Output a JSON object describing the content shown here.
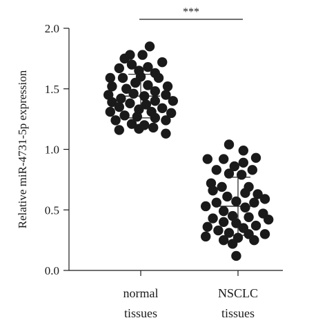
{
  "chart_data": {
    "type": "scatter",
    "ylabel": "Relative miR-4731-5p expression",
    "ylim": [
      0.0,
      2.0
    ],
    "yticks": [
      "0.0",
      "0.5",
      "1.0",
      "1.5",
      "2.0"
    ],
    "grid": false,
    "categories": [
      {
        "line1": "normal",
        "line2": "tissues"
      },
      {
        "line1": "NSCLC",
        "line2": "tissues"
      }
    ],
    "groups": [
      {
        "mean": 1.44,
        "sd_low": 1.26,
        "sd_high": 1.62,
        "points": [
          [
            0.25,
            1.85
          ],
          [
            -0.3,
            1.78
          ],
          [
            0.05,
            1.78
          ],
          [
            -0.45,
            1.75
          ],
          [
            0.6,
            1.72
          ],
          [
            -0.25,
            1.7
          ],
          [
            0.2,
            1.68
          ],
          [
            -0.6,
            1.67
          ],
          [
            -0.05,
            1.65
          ],
          [
            0.4,
            1.63
          ],
          [
            -0.85,
            1.59
          ],
          [
            -0.5,
            1.59
          ],
          [
            0.0,
            1.6
          ],
          [
            0.5,
            1.59
          ],
          [
            -0.15,
            1.55
          ],
          [
            -0.8,
            1.52
          ],
          [
            0.2,
            1.53
          ],
          [
            0.75,
            1.52
          ],
          [
            -0.4,
            1.5
          ],
          [
            0.4,
            1.48
          ],
          [
            -0.9,
            1.45
          ],
          [
            -0.2,
            1.46
          ],
          [
            0.1,
            1.44
          ],
          [
            0.7,
            1.45
          ],
          [
            -0.55,
            1.42
          ],
          [
            -0.8,
            1.39
          ],
          [
            0.4,
            1.4
          ],
          [
            0.9,
            1.4
          ],
          [
            -0.3,
            1.38
          ],
          [
            0.15,
            1.37
          ],
          [
            -0.6,
            1.35
          ],
          [
            -0.05,
            1.33
          ],
          [
            0.6,
            1.34
          ],
          [
            -0.85,
            1.31
          ],
          [
            0.3,
            1.31
          ],
          [
            0.85,
            1.3
          ],
          [
            -0.45,
            1.28
          ],
          [
            -0.1,
            1.27
          ],
          [
            0.4,
            1.26
          ],
          [
            -0.7,
            1.24
          ],
          [
            0.7,
            1.24
          ],
          [
            -0.25,
            1.21
          ],
          [
            0.1,
            1.2
          ],
          [
            0.35,
            1.18
          ],
          [
            -0.05,
            1.17
          ],
          [
            -0.6,
            1.16
          ],
          [
            0.7,
            1.13
          ]
        ]
      },
      {
        "mean": 0.53,
        "sd_low": 0.29,
        "sd_high": 0.77,
        "points": [
          [
            -0.25,
            1.04
          ],
          [
            0.15,
            0.99
          ],
          [
            0.5,
            0.93
          ],
          [
            -0.85,
            0.92
          ],
          [
            -0.4,
            0.92
          ],
          [
            0.15,
            0.89
          ],
          [
            -0.1,
            0.86
          ],
          [
            -0.6,
            0.83
          ],
          [
            0.4,
            0.83
          ],
          [
            -0.25,
            0.8
          ],
          [
            0.1,
            0.79
          ],
          [
            -0.75,
            0.72
          ],
          [
            -0.45,
            0.69
          ],
          [
            0.3,
            0.69
          ],
          [
            -0.7,
            0.66
          ],
          [
            0.2,
            0.64
          ],
          [
            0.55,
            0.63
          ],
          [
            -0.3,
            0.61
          ],
          [
            0.75,
            0.59
          ],
          [
            -0.05,
            0.57
          ],
          [
            -0.6,
            0.56
          ],
          [
            0.45,
            0.56
          ],
          [
            -0.9,
            0.53
          ],
          [
            0.2,
            0.52
          ],
          [
            -0.4,
            0.49
          ],
          [
            0.7,
            0.47
          ],
          [
            -0.15,
            0.45
          ],
          [
            0.3,
            0.44
          ],
          [
            -0.7,
            0.43
          ],
          [
            0.85,
            0.42
          ],
          [
            -0.4,
            0.4
          ],
          [
            -0.05,
            0.39
          ],
          [
            0.5,
            0.37
          ],
          [
            -0.85,
            0.36
          ],
          [
            0.15,
            0.35
          ],
          [
            -0.55,
            0.33
          ],
          [
            -0.25,
            0.31
          ],
          [
            0.3,
            0.3
          ],
          [
            -0.9,
            0.28
          ],
          [
            0.75,
            0.3
          ],
          [
            0.0,
            0.27
          ],
          [
            -0.4,
            0.25
          ],
          [
            0.45,
            0.25
          ],
          [
            -0.15,
            0.22
          ],
          [
            -0.05,
            0.12
          ]
        ]
      }
    ],
    "annotations": [
      {
        "text": "***",
        "between": [
          0,
          1
        ]
      }
    ]
  }
}
